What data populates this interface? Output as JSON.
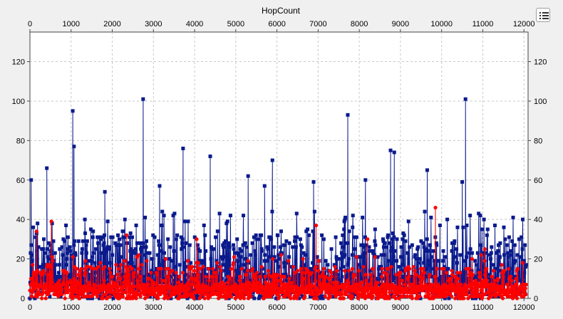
{
  "chart_data": {
    "type": "line",
    "title": "HopCount",
    "xlim": [
      0,
      12100
    ],
    "ylim": [
      0,
      135
    ],
    "x_ticks": [
      "0",
      "1000",
      "2000",
      "3000",
      "4000",
      "5000",
      "6000",
      "7000",
      "8000",
      "9000",
      "10000",
      "11000",
      "12000"
    ],
    "y_ticks": [
      "0",
      "20",
      "40",
      "60",
      "80",
      "100",
      "120"
    ],
    "grid": true,
    "legend_toggle_icon": "legend-list-icon",
    "series": [
      {
        "color": "#0a1a8c",
        "marker": "square",
        "peaks": [
          {
            "x": 30,
            "y": 60
          },
          {
            "x": 410,
            "y": 66
          },
          {
            "x": 1040,
            "y": 95
          },
          {
            "x": 1070,
            "y": 77
          },
          {
            "x": 1820,
            "y": 54
          },
          {
            "x": 2750,
            "y": 101
          },
          {
            "x": 3720,
            "y": 76
          },
          {
            "x": 4380,
            "y": 72
          },
          {
            "x": 5300,
            "y": 62
          },
          {
            "x": 5890,
            "y": 70
          },
          {
            "x": 6890,
            "y": 59
          },
          {
            "x": 7720,
            "y": 93
          },
          {
            "x": 8760,
            "y": 75
          },
          {
            "x": 8850,
            "y": 74
          },
          {
            "x": 9650,
            "y": 65
          },
          {
            "x": 10580,
            "y": 101
          },
          {
            "x": 10500,
            "y": 59
          },
          {
            "x": 8150,
            "y": 60
          },
          {
            "x": 5700,
            "y": 57
          },
          {
            "x": 3150,
            "y": 57
          }
        ],
        "typical_max": 40
      },
      {
        "color": "#ff0000",
        "marker": "circle",
        "peaks": [
          {
            "x": 520,
            "y": 39
          },
          {
            "x": 160,
            "y": 34
          },
          {
            "x": 6950,
            "y": 37
          },
          {
            "x": 9850,
            "y": 46
          },
          {
            "x": 2350,
            "y": 32
          },
          {
            "x": 4050,
            "y": 30
          },
          {
            "x": 8200,
            "y": 30
          },
          {
            "x": 11050,
            "y": 25
          }
        ],
        "typical_max": 20
      }
    ]
  }
}
